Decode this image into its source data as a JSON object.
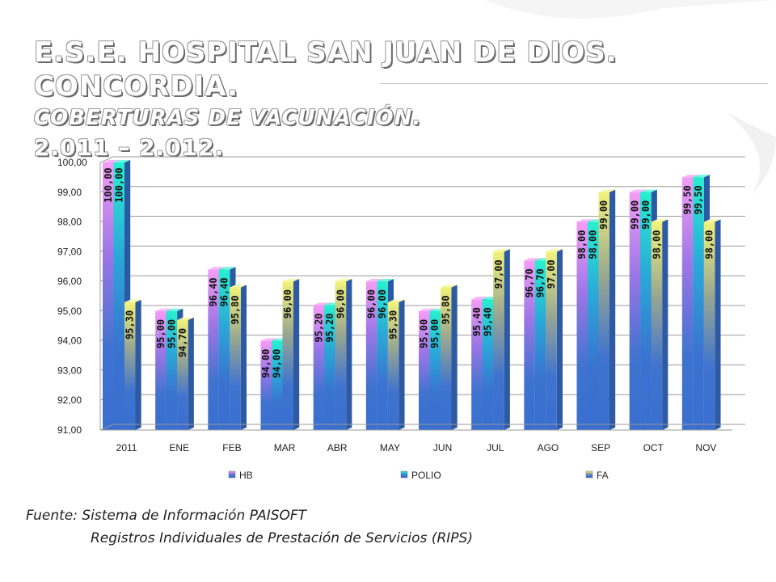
{
  "title": {
    "line1": "E.S.E. HOSPITAL SAN JUAN DE DIOS.  CONCORDIA.",
    "line2": "COBERTURAS DE VACUNACIÓN.",
    "line3": "2.011 – 2.012."
  },
  "chart_data": {
    "type": "bar",
    "categories": [
      "2011",
      "ENE",
      "FEB",
      "MAR",
      "ABR",
      "MAY",
      "JUN",
      "JUL",
      "AGO",
      "SEP",
      "OCT",
      "NOV"
    ],
    "series": [
      {
        "name": "HB",
        "values": [
          100.0,
          95.0,
          96.4,
          94.0,
          95.2,
          96.0,
          95.0,
          95.4,
          96.7,
          98.0,
          99.0,
          99.5
        ],
        "labels": [
          "100,00",
          "95,00",
          "96,40",
          "94,00",
          "95,20",
          "96,00",
          "95,00",
          "95,40",
          "96,70",
          "98,00",
          "99,00",
          "99,50"
        ],
        "color": "#ee82ee"
      },
      {
        "name": "POLIO",
        "values": [
          100.0,
          95.0,
          96.4,
          94.0,
          95.2,
          96.0,
          95.0,
          95.4,
          96.7,
          98.0,
          99.0,
          99.5
        ],
        "labels": [
          "100,00",
          "95,00",
          "96,40",
          "94,00",
          "95,20",
          "96,00",
          "95,00",
          "95,40",
          "96,70",
          "98,00",
          "99,00",
          "99,50"
        ],
        "color": "#1ee8c8"
      },
      {
        "name": "FA",
        "values": [
          95.3,
          94.7,
          95.8,
          96.0,
          96.0,
          95.3,
          95.8,
          97.0,
          97.0,
          99.0,
          98.0,
          98.0
        ],
        "labels": [
          "95,30",
          "94,70",
          "95,80",
          "96,00",
          "96,00",
          "95,30",
          "95,80",
          "97,00",
          "97,00",
          "99,00",
          "98,00",
          "98,00"
        ],
        "color": "#e8e870"
      }
    ],
    "yticks": [
      "91,00",
      "92,00",
      "93,00",
      "94,00",
      "95,00",
      "96,00",
      "97,00",
      "98,00",
      "99,00",
      "100,00"
    ],
    "ylim": [
      91,
      100
    ],
    "grid": true,
    "legend": "bottom"
  },
  "source": {
    "line1": "Fuente: Sistema de Información PAISOFT",
    "line2": "Registros Individuales de Prestación de Servicios (RIPS)"
  }
}
